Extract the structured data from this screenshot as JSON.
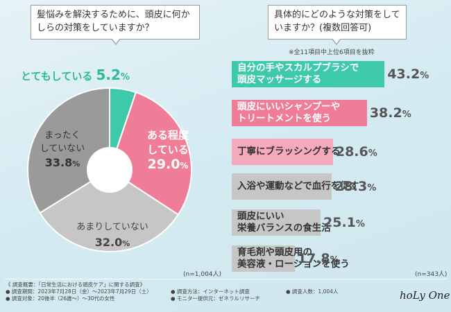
{
  "left": {
    "question": "髪悩みを解決するために、頭皮に何かしらの対策をしていますか？",
    "n_label": "(n=1,004人)"
  },
  "right": {
    "question": "具体的にどのような対策をしていますか？(複数回答可)",
    "note": "※全11項目中上位6項目を抜粋",
    "n_label": "(n=343人)"
  },
  "chart_data": [
    {
      "type": "pie",
      "title": "髪悩みを解決するために、頭皮に何かしらの対策をしていますか？",
      "labels": [
        "とてもしている",
        "ある程度している",
        "あまりしていない",
        "まったくしていない"
      ],
      "values": [
        5.2,
        29.0,
        32.0,
        33.8
      ],
      "value_labels": [
        "5.2",
        "29.0",
        "32.0",
        "33.8"
      ],
      "unit": "%",
      "colors": [
        "#3ec9aa",
        "#f07d98",
        "#c6c6c6",
        "#9a9a9a"
      ]
    },
    {
      "type": "bar",
      "title": "具体的にどのような対策をしていますか？(複数回答可)",
      "categories": [
        "自分の手やスカルプブラシで頭皮マッサージする",
        "頭皮にいいシャンプーやトリートメントを使う",
        "丁寧にブラッシングする",
        "入浴や運動などで血行を促す",
        "頭皮にいい栄養バランスの食生活",
        "育毛剤や頭皮用の美容液・ローションを使う"
      ],
      "category_lines": [
        [
          "自分の手やスカルプブラシで",
          "頭皮マッサージする"
        ],
        [
          "頭皮にいいシャンプーや",
          "トリートメントを使う"
        ],
        [
          "丁寧にブラッシングする"
        ],
        [
          "入浴や運動などで血行を促す"
        ],
        [
          "頭皮にいい",
          "栄養バランスの食生活"
        ],
        [
          "育毛剤や頭皮用の",
          "美容液・ローションを使う"
        ]
      ],
      "values": [
        43.2,
        38.2,
        28.6,
        28.3,
        25.1,
        17.8
      ],
      "value_labels": [
        "43.2",
        "38.2",
        "28.6",
        "28.3",
        "25.1",
        "17.8"
      ],
      "unit": "%",
      "colors": [
        "#3ec9aa",
        "#f07d98",
        "#f4a9bc",
        "#c6c6c6",
        "#c6c6c6",
        "#c6c6c6"
      ]
    }
  ],
  "footer": {
    "overview": "《 調査概要：「日常生活における頭皮ケア」に関する調査》",
    "period": "● 調査期間：2023年7月28日（金）～2023年7月29日（土）",
    "target": "● 調査対象：20後半（26歳～）～30代の女性",
    "method": "● 調査方法：インターネット調査",
    "provider": "● モニター提供元：ゼネラルリサーチ",
    "count": "● 調査人数：1,004人",
    "brand": "hoLy One"
  }
}
